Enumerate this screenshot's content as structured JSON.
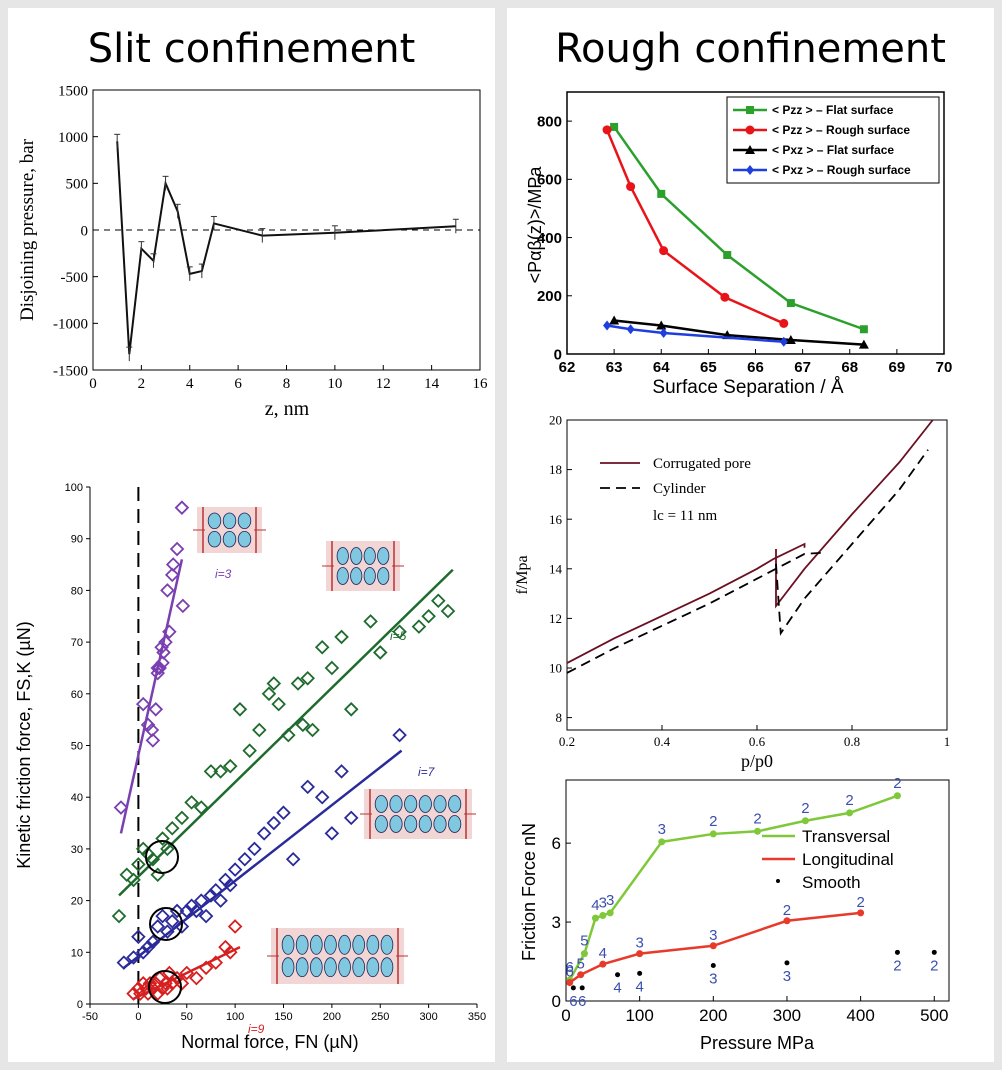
{
  "headings": {
    "left": "Slit confinement",
    "right": "Rough confinement"
  },
  "charts": {
    "slit": {
      "type": "line",
      "ylabel": "Disjoining pressure, bar",
      "xlabel": "z, nm",
      "xlim": [
        0,
        16
      ],
      "ylim": [
        -1500,
        1500
      ],
      "xticks": [
        "0",
        "2",
        "4",
        "6",
        "8",
        "10",
        "12",
        "14",
        "16"
      ],
      "yticks": [
        "-1500",
        "-1000",
        "-500",
        "0",
        "500",
        "1000",
        "1500"
      ],
      "x": [
        1,
        1.5,
        2,
        2.5,
        3,
        3.5,
        4,
        4.5,
        5,
        7,
        10,
        15
      ],
      "y": [
        950,
        -1330,
        -200,
        -330,
        500,
        200,
        -470,
        -440,
        70,
        -60,
        -30,
        40
      ]
    },
    "pressure": {
      "type": "line",
      "ylabel": "<Pαβ(z)>/MPa",
      "xlabel": "Surface Separation / Å",
      "xlim": [
        62,
        70
      ],
      "ylim": [
        0,
        900
      ],
      "xticks": [
        "62",
        "63",
        "64",
        "65",
        "66",
        "67",
        "68",
        "69",
        "70"
      ],
      "yticks": [
        "0",
        "200",
        "400",
        "600",
        "800"
      ],
      "series": [
        {
          "name": "< Pzz > – Flat surface",
          "color": "#2ca02c",
          "marker": "square",
          "x": [
            63,
            64,
            65.4,
            66.75,
            68.3
          ],
          "y": [
            780,
            550,
            340,
            175,
            85
          ]
        },
        {
          "name": "< Pzz > – Rough surface",
          "color": "#e8141a",
          "marker": "circle",
          "x": [
            62.85,
            63.35,
            64.05,
            65.35,
            66.6
          ],
          "y": [
            770,
            575,
            355,
            195,
            105
          ]
        },
        {
          "name": "< Pxz > – Flat surface",
          "color": "#000000",
          "marker": "triangle",
          "x": [
            63,
            64,
            65.4,
            66.75,
            68.3
          ],
          "y": [
            115,
            98,
            65,
            48,
            32
          ]
        },
        {
          "name": "< Pxz > – Rough surface",
          "color": "#1f3ee0",
          "marker": "diamond",
          "x": [
            62.85,
            63.35,
            64.05,
            66.6
          ],
          "y": [
            98,
            85,
            72,
            42
          ]
        }
      ]
    },
    "friction": {
      "type": "scatter",
      "ylabel": "Kinetic friction force, FS,K (µN)",
      "xlabel": "Normal force, FN (µN)",
      "xlim": [
        -50,
        350
      ],
      "ylim": [
        0,
        100
      ],
      "xticks": [
        "-50",
        "0",
        "50",
        "100",
        "150",
        "200",
        "250",
        "300",
        "350"
      ],
      "yticks": [
        "0",
        "10",
        "20",
        "30",
        "40",
        "50",
        "60",
        "70",
        "80",
        "90",
        "100"
      ],
      "series": [
        {
          "name": "i=3",
          "color": "#7a3fb0",
          "x": [
            -18,
            5,
            10,
            15,
            20,
            22,
            25,
            26,
            28,
            30,
            32,
            35,
            36,
            40,
            45,
            46,
            20,
            18,
            24,
            14
          ],
          "y": [
            38,
            58,
            54,
            51,
            64,
            65,
            66,
            68,
            70,
            80,
            72,
            83,
            85,
            88,
            96,
            77,
            65,
            57,
            69,
            53
          ],
          "fit": [
            [
              -18,
              33
            ],
            [
              45,
              86
            ]
          ]
        },
        {
          "name": "i=5",
          "color": "#1f6b2e",
          "x": [
            -20,
            -12,
            -5,
            0,
            5,
            10,
            15,
            20,
            25,
            30,
            35,
            45,
            55,
            65,
            75,
            85,
            95,
            105,
            115,
            125,
            135,
            140,
            145,
            155,
            165,
            170,
            175,
            180,
            190,
            200,
            210,
            220,
            240,
            250,
            270,
            290,
            300,
            310,
            320
          ],
          "y": [
            17,
            25,
            24,
            27,
            30,
            29,
            28,
            25,
            32,
            30,
            34,
            36,
            39,
            38,
            45,
            45,
            46,
            57,
            49,
            53,
            60,
            62,
            58,
            52,
            62,
            54,
            63,
            53,
            69,
            65,
            71,
            57,
            74,
            68,
            72,
            73,
            75,
            78,
            76
          ],
          "fit": [
            [
              -20,
              21
            ],
            [
              325,
              84
            ]
          ]
        },
        {
          "name": "i=7",
          "color": "#2a2a9a",
          "x": [
            -15,
            -5,
            0,
            5,
            10,
            15,
            20,
            25,
            30,
            35,
            40,
            45,
            50,
            55,
            60,
            65,
            70,
            75,
            80,
            85,
            90,
            95,
            100,
            110,
            120,
            130,
            140,
            150,
            160,
            175,
            190,
            200,
            210,
            220,
            270
          ],
          "y": [
            8,
            9,
            13,
            10,
            11,
            12,
            15,
            17,
            14,
            16,
            18,
            15,
            18,
            19,
            18,
            20,
            17,
            21,
            22,
            20,
            24,
            23,
            26,
            28,
            30,
            33,
            35,
            37,
            28,
            42,
            40,
            33,
            45,
            36,
            52
          ],
          "fit": [
            [
              -15,
              7
            ],
            [
              272,
              49
            ]
          ]
        },
        {
          "name": "i=9",
          "color": "#d62020",
          "x": [
            -5,
            0,
            2,
            5,
            8,
            10,
            12,
            15,
            18,
            20,
            22,
            25,
            28,
            30,
            32,
            35,
            40,
            45,
            50,
            60,
            70,
            80,
            90,
            95,
            100
          ],
          "y": [
            2,
            3,
            2,
            4,
            3,
            2,
            4,
            3,
            4,
            2,
            5,
            3,
            4,
            3,
            6,
            4,
            5,
            4,
            6,
            5,
            7,
            8,
            11,
            10,
            15
          ],
          "fit": [
            [
              -5,
              1
            ],
            [
              105,
              11
            ]
          ]
        }
      ],
      "labels": [
        "i=3",
        "i=5",
        "i=7",
        "i=9"
      ]
    },
    "isotherm": {
      "type": "line",
      "ylabel": "f/Mpa",
      "xlabel": "p/p0",
      "xlim": [
        0.2,
        1.0
      ],
      "ylim": [
        7.5,
        20
      ],
      "xticks": [
        "0.2",
        "0.4",
        "0.6",
        "0.8",
        "1"
      ],
      "yticks": [
        "8",
        "10",
        "12",
        "14",
        "16",
        "18",
        "20"
      ],
      "legend": [
        "Corrugated pore",
        "Cylinder",
        "lc = 11 nm"
      ],
      "series": [
        {
          "name": "Corrugated pore",
          "color": "#6b0f22",
          "dash": false,
          "segments": [
            [
              [
                0.2,
                10.2
              ],
              [
                0.3,
                11.2
              ],
              [
                0.4,
                12.1
              ],
              [
                0.5,
                13.0
              ],
              [
                0.6,
                14.0
              ],
              [
                0.635,
                14.4
              ],
              [
                0.7,
                15.0
              ],
              [
                0.7,
                14.85
              ]
            ],
            [
              [
                0.64,
                14.8
              ],
              [
                0.64,
                12.5
              ],
              [
                0.7,
                14.0
              ],
              [
                0.8,
                16.2
              ],
              [
                0.9,
                18.3
              ],
              [
                0.97,
                20.0
              ]
            ]
          ]
        },
        {
          "name": "Cylinder",
          "color": "#000000",
          "dash": true,
          "segments": [
            [
              [
                0.2,
                9.8
              ],
              [
                0.3,
                10.8
              ],
              [
                0.4,
                11.7
              ],
              [
                0.5,
                12.6
              ],
              [
                0.6,
                13.6
              ],
              [
                0.7,
                14.6
              ],
              [
                0.74,
                14.65
              ]
            ],
            [
              [
                0.64,
                14.2
              ],
              [
                0.65,
                11.4
              ],
              [
                0.7,
                12.8
              ],
              [
                0.8,
                15.0
              ],
              [
                0.9,
                17.2
              ],
              [
                0.96,
                18.8
              ]
            ]
          ]
        }
      ]
    },
    "force": {
      "type": "line",
      "ylabel": "Friction Force nN",
      "xlabel": "Pressure MPa",
      "xlim": [
        0,
        520
      ],
      "ylim": [
        0,
        8.4
      ],
      "xticks": [
        "0",
        "100",
        "200",
        "300",
        "400",
        "500"
      ],
      "yticks": [
        "0",
        "3",
        "6"
      ],
      "legend": [
        "Transversal",
        "Longitudinal",
        "Smooth"
      ],
      "series": [
        {
          "name": "Transversal",
          "color": "#7ec83a",
          "x": [
            5,
            25,
            40,
            50,
            60,
            130,
            200,
            260,
            325,
            385,
            450
          ],
          "y": [
            0.8,
            1.8,
            3.15,
            3.25,
            3.35,
            6.05,
            6.35,
            6.45,
            6.85,
            7.15,
            7.8
          ],
          "annot": [
            "6",
            "5",
            "4",
            "3",
            "3",
            "3",
            "2",
            "2",
            "2",
            "2",
            "2"
          ]
        },
        {
          "name": "Longitudinal",
          "color": "#e83a2a",
          "x": [
            5,
            20,
            50,
            100,
            200,
            300,
            400
          ],
          "y": [
            0.7,
            1.0,
            1.4,
            1.8,
            2.1,
            3.05,
            3.35
          ],
          "annot": [
            "6",
            "5",
            "4",
            "3",
            "3",
            "2",
            "2"
          ]
        },
        {
          "name": "Smooth",
          "color": "#000000",
          "x": [
            10,
            22,
            70,
            100,
            200,
            300,
            450,
            500
          ],
          "y": [
            0.5,
            0.5,
            1.0,
            1.05,
            1.35,
            1.45,
            1.85,
            1.85
          ],
          "annot": [
            "6",
            "6",
            "4",
            "4",
            "3",
            "3",
            "2",
            "2"
          ]
        }
      ]
    }
  }
}
